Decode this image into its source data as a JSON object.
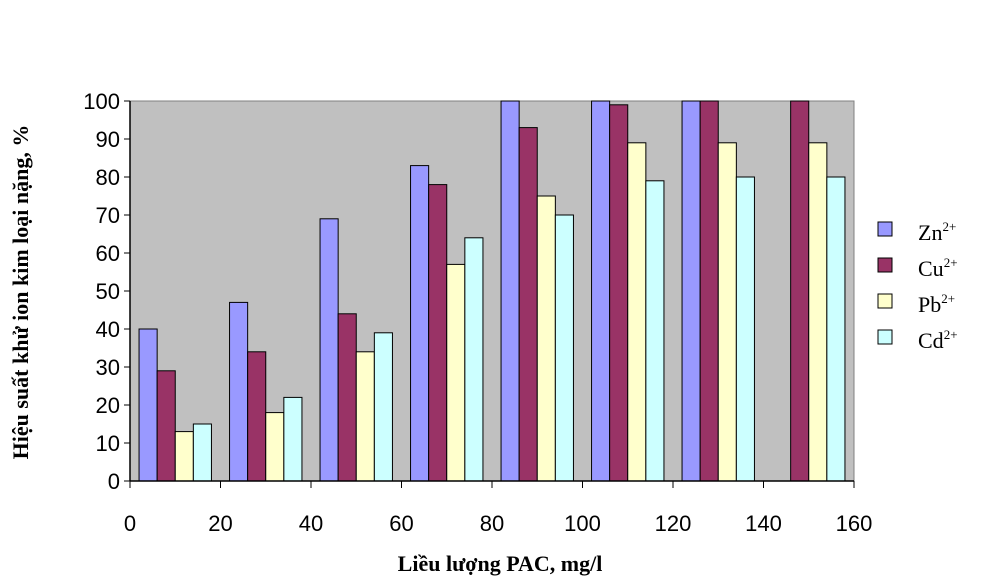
{
  "chart_data": {
    "type": "bar",
    "ylabel": "Hiệu suất khử ion kim loại nặng, %",
    "xlabel": "Liều lượng PAC, mg/l",
    "x_tick_labels": [
      "0",
      "20",
      "40",
      "60",
      "80",
      "100",
      "120",
      "140",
      "160"
    ],
    "y_tick_labels": [
      "0",
      "10",
      "20",
      "30",
      "40",
      "50",
      "60",
      "70",
      "80",
      "90",
      "100"
    ],
    "ylim": [
      0,
      100
    ],
    "xlim": [
      0,
      160
    ],
    "grid": false,
    "legend_position": "right",
    "background": "#c0c0c0",
    "categories": [
      "10",
      "30",
      "50",
      "70",
      "90",
      "110",
      "130",
      "150"
    ],
    "series": [
      {
        "name": "Zn",
        "charge": "2+",
        "color": "#9999ff",
        "values": [
          40,
          47,
          69,
          83,
          100,
          100,
          100,
          null
        ]
      },
      {
        "name": "Cu",
        "charge": "2+",
        "color": "#993366",
        "values": [
          29,
          34,
          44,
          78,
          93,
          99,
          100,
          100
        ]
      },
      {
        "name": "Pb",
        "charge": "2+",
        "color": "#ffffcc",
        "values": [
          13,
          18,
          34,
          57,
          75,
          89,
          89,
          89
        ]
      },
      {
        "name": "Cd",
        "charge": "2+",
        "color": "#ccffff",
        "values": [
          15,
          22,
          39,
          64,
          70,
          79,
          80,
          80
        ]
      }
    ]
  }
}
